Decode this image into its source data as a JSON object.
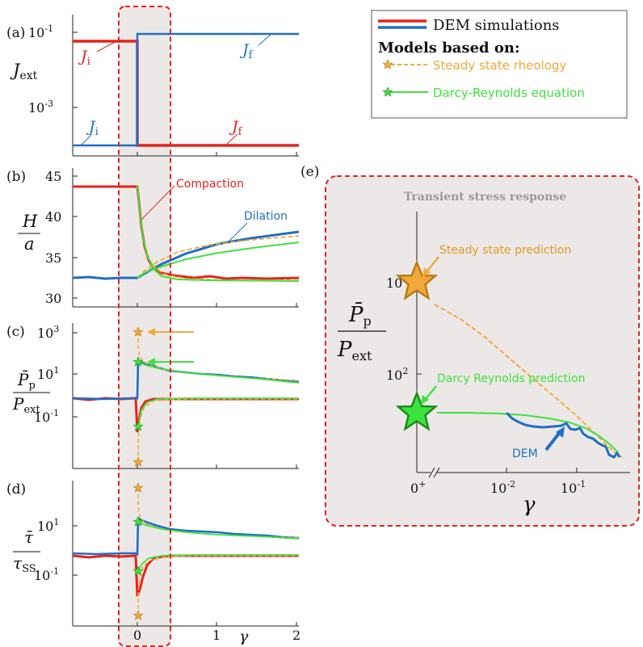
{
  "colors": {
    "dem_red": "#e8211b",
    "dem_blue": "#1f6fc5",
    "steady_orange": "#f2a93b",
    "darcy_green": "#3ee23e",
    "highlight_dashed": "#e8211b",
    "shade": "#ede8e8"
  },
  "legend": {
    "dem": "DEM simulations",
    "models_header": "Models based on:",
    "steady": "Steady state rheology",
    "darcy": "Darcy-Reynolds equation"
  },
  "panels": {
    "a": {
      "label": "(a)",
      "ylabel": "J_ext",
      "ticks": [
        "10^-1",
        "10^-3"
      ],
      "annotations": {
        "J_i_red": "J_i",
        "J_f_blue": "J_f",
        "J_i_blue": "J_i",
        "J_f_red": "J_f"
      }
    },
    "b": {
      "label": "(b)",
      "ylabel_num": "H",
      "ylabel_den": "a",
      "ticks": [
        "45",
        "40",
        "35",
        "30"
      ],
      "annotations": {
        "compaction": "Compaction",
        "dilation": "Dilation"
      }
    },
    "c": {
      "label": "(c)",
      "ylabel_num": "P̄_p",
      "ylabel_den": "P_ext",
      "ticks": [
        "10^3",
        "10^1",
        "10^-1"
      ]
    },
    "d": {
      "label": "(d)",
      "ylabel_num": "τ̄",
      "ylabel_den": "τ_SS",
      "ticks": [
        "10^1",
        "10^-1"
      ],
      "xticks": [
        "0",
        "1",
        "2"
      ],
      "xlabel": "γ"
    },
    "e": {
      "label": "(e)",
      "title": "Transient stress response",
      "ylabel_num": "P̄_p",
      "ylabel_den": "P_ext",
      "yticks": [
        "10^3",
        "10^2"
      ],
      "xticks": [
        "0^+",
        "10^-2",
        "10^-1"
      ],
      "xlabel": "γ",
      "annotations": {
        "steady": "Steady state prediction",
        "darcy": "Darcy Reynolds prediction",
        "dem": "DEM"
      }
    }
  },
  "chart_data": [
    {
      "panel": "a",
      "type": "line",
      "ylabel": "J_ext",
      "yscale": "log",
      "series": [
        {
          "x": [
            -1,
            0,
            0,
            2
          ],
          "y": [
            0.06,
            0.06,
            0.0001,
            0.0001
          ]
        },
        {
          "x": [
            -1,
            0,
            0,
            2
          ],
          "y": [
            0.0001,
            0.0001,
            0.08,
            0.08
          ]
        }
      ]
    },
    {
      "panel": "b",
      "type": "line",
      "ylabel": "H/a",
      "ylim": [
        29,
        46
      ],
      "series": [
        {
          "x": [
            -1,
            0,
            0.03,
            0.06,
            0.1,
            0.15,
            0.25,
            0.5,
            1,
            2
          ],
          "y": [
            43.8,
            43.8,
            40.5,
            36.5,
            34.2,
            33.4,
            33.0,
            32.8,
            32.6,
            32.5
          ]
        },
        {
          "x": [
            -1,
            -0.5,
            0,
            0.05,
            0.2,
            0.5,
            1,
            1.5,
            2
          ],
          "y": [
            32.6,
            32.6,
            32.6,
            33.6,
            34.6,
            35.8,
            36.7,
            37.5,
            38.2
          ]
        },
        {
          "x": [
            0,
            0.05,
            0.1,
            0.2,
            0.5,
            1,
            2
          ],
          "y": [
            44,
            37,
            34,
            33.2,
            32.7,
            32.5,
            32.4
          ]
        },
        {
          "x": [
            0,
            0.1,
            0.3,
            0.6,
            1,
            1.5,
            2
          ],
          "y": [
            33,
            33.9,
            34.7,
            35.4,
            35.9,
            36.5,
            37
          ]
        },
        {
          "x": [
            0,
            0.05,
            0.1,
            0.2,
            0.4,
            0.6,
            0.8,
            1.0
          ],
          "y": [
            44,
            37.5,
            34,
            32.8,
            32.5,
            32.4,
            32.4,
            32.4
          ]
        },
        {
          "x": [
            0,
            0.05,
            0.1,
            0.3,
            0.6,
            1,
            1.5,
            2
          ],
          "y": [
            33,
            33.8,
            34.3,
            35.1,
            35.8,
            36.3,
            36.9,
            37.5
          ]
        }
      ]
    },
    {
      "panel": "c",
      "type": "line",
      "ylabel": "P̄p/Pext",
      "yscale": "log",
      "ylim": [
        0.004,
        2000
      ],
      "series": [
        {
          "x": [
            -1,
            -0.5,
            0,
            0.02,
            0.05,
            0.1,
            0.3,
            0.6,
            1,
            2
          ],
          "y": [
            1.0,
            0.95,
            1.0,
            0.1,
            0.5,
            0.9,
            1.0,
            1.0,
            1.0,
            1.0
          ]
        },
        {
          "x": [
            -1,
            -0.5,
            0,
            0.02,
            0.05,
            0.1,
            0.3,
            0.6,
            1,
            1.5,
            2
          ],
          "y": [
            1.0,
            1.0,
            1.0,
            28,
            25,
            20,
            15,
            12,
            11,
            9,
            7.5
          ]
        },
        {
          "x": [
            0,
            0.01,
            0.02,
            0.05,
            0.1,
            0.5,
            1,
            2
          ],
          "y": [
            1100,
            60,
            30,
            20,
            16,
            12,
            10,
            8
          ]
        },
        {
          "x": [
            0,
            0.02,
            0.05,
            0.2,
            1,
            2
          ],
          "y": [
            0.006,
            0.1,
            0.4,
            0.9,
            1.0,
            1.0
          ]
        },
        {
          "x": [
            0,
            0.05,
            0.1,
            0.5,
            1,
            2
          ],
          "y": [
            30,
            22,
            18,
            13,
            10,
            8
          ]
        },
        {
          "x": [
            0,
            0.02,
            0.05,
            0.2,
            1,
            2
          ],
          "y": [
            0.15,
            0.5,
            0.8,
            1.0,
            1.0,
            1.0
          ]
        }
      ]
    },
    {
      "panel": "d",
      "type": "line",
      "ylabel": "τ̄/τSS",
      "yscale": "log",
      "xlabel": "γ",
      "xlim": [
        -0.8,
        2
      ],
      "ylim": [
        0.005,
        400
      ],
      "series": [
        {
          "x": [
            -1,
            -0.5,
            0,
            0.02,
            0.05,
            0.1,
            0.2,
            0.5,
            1,
            2
          ],
          "y": [
            0.95,
            0.9,
            0.95,
            0.06,
            0.09,
            0.4,
            0.9,
            1.0,
            1.0,
            1.0
          ]
        },
        {
          "x": [
            -1,
            -0.5,
            0,
            0.02,
            0.05,
            0.1,
            0.3,
            0.6,
            1,
            1.5,
            2
          ],
          "y": [
            1.1,
            1.05,
            1.1,
            16,
            13,
            10,
            7,
            5.5,
            5,
            4.5,
            4
          ]
        },
        {
          "x": [
            0,
            0.01,
            0.03,
            0.1,
            0.5,
            1,
            2
          ],
          "y": [
            200,
            20,
            10,
            7,
            5,
            4.5,
            4
          ]
        },
        {
          "x": [
            0,
            0.02,
            0.05,
            0.2,
            1,
            2
          ],
          "y": [
            0.008,
            0.3,
            0.8,
            1.0,
            1.0,
            1.0
          ]
        },
        {
          "x": [
            0,
            0.05,
            0.1,
            0.5,
            1,
            2
          ],
          "y": [
            12,
            9,
            7,
            5.5,
            5,
            4.3
          ]
        },
        {
          "x": [
            0,
            0.03,
            0.08,
            0.2,
            1,
            2
          ],
          "y": [
            0.3,
            0.7,
            0.9,
            1.0,
            1.0,
            1.0
          ]
        }
      ]
    },
    {
      "panel": "e",
      "type": "line",
      "title": "Transient stress response",
      "ylabel": "P̄p/Pext",
      "xlabel": "γ",
      "xscale": "log",
      "yscale": "log",
      "series": [
        {
          "x": [
            0.01,
            0.02,
            0.04,
            0.07,
            0.1,
            0.15,
            0.2,
            0.25,
            0.3
          ],
          "y": [
            58,
            48,
            45,
            47,
            40,
            37,
            34,
            32,
            31
          ]
        },
        {
          "x": [
            0.001,
            0.01,
            0.05,
            0.1,
            0.2,
            0.3
          ],
          "y": [
            60,
            59,
            54,
            45,
            38,
            32
          ]
        },
        {
          "x": [
            0.001,
            0.005,
            0.02,
            0.05,
            0.1,
            0.2,
            0.3
          ],
          "y": [
            750,
            480,
            230,
            110,
            60,
            40,
            32
          ]
        }
      ],
      "markers": [
        {
          "x": "0^+",
          "y": 1050,
          "kind": "steady-state-star"
        },
        {
          "x": "0^+",
          "y": 60,
          "kind": "darcy-star"
        }
      ]
    }
  ]
}
